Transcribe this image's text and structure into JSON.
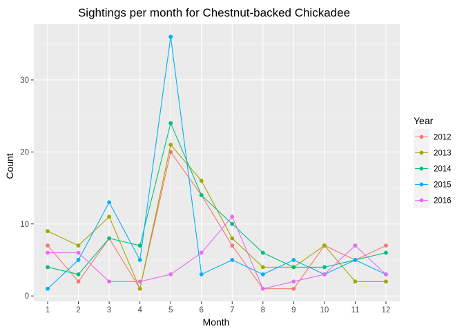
{
  "chart_data": {
    "type": "line",
    "title": "Sightings per month for Chestnut-backed Chickadee",
    "xlabel": "Month",
    "ylabel": "Count",
    "x": [
      1,
      2,
      3,
      4,
      5,
      6,
      7,
      8,
      9,
      10,
      11,
      12
    ],
    "xlim": [
      0.55,
      12.45
    ],
    "ylim": [
      -0.75,
      37.75
    ],
    "y_ticks": [
      0,
      10,
      20,
      30
    ],
    "grid": true,
    "legend": {
      "title": "Year",
      "placement": "right"
    },
    "series": [
      {
        "name": "2012",
        "color": "#F8766D",
        "values": [
          7,
          2,
          8,
          1,
          20,
          14,
          7,
          1,
          1,
          7,
          5,
          7
        ]
      },
      {
        "name": "2013",
        "color": "#A3A500",
        "values": [
          9,
          7,
          11,
          1,
          21,
          16,
          8,
          4,
          4,
          7,
          2,
          2
        ]
      },
      {
        "name": "2014",
        "color": "#00BF7D",
        "values": [
          4,
          3,
          8,
          7,
          24,
          14,
          10,
          6,
          4,
          4,
          5,
          6
        ]
      },
      {
        "name": "2015",
        "color": "#00B0F6",
        "values": [
          1,
          5,
          13,
          5,
          36,
          3,
          5,
          3,
          5,
          3,
          5,
          3
        ]
      },
      {
        "name": "2016",
        "color": "#E76BF3",
        "values": [
          6,
          6,
          2,
          2,
          3,
          6,
          11,
          1,
          2,
          3,
          7,
          3
        ]
      }
    ]
  }
}
